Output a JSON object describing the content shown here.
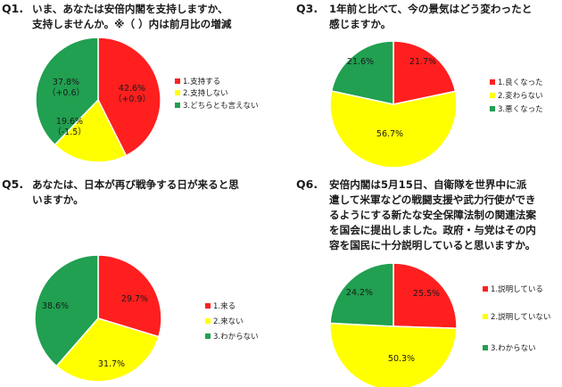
{
  "colors": {
    "red": "#ff1f1f",
    "yellow": "#ffff00",
    "green": "#20a050",
    "text": "#1a1a1a"
  },
  "questions": [
    {
      "num": "Q1.",
      "text": "いま、あなたは安倍内閣を支持しますか、\n支持しませんか。※（ ）内は前月比の増減"
    },
    {
      "num": "Q3.",
      "text": "1年前と比べて、今の景気はどう変わったと\n感じますか。"
    },
    {
      "num": "Q5.",
      "text": "あなたは、日本が再び戦争する日が来ると思\nいますか。"
    },
    {
      "num": "Q6.",
      "text": "安倍内閣は5月15日、自衛隊を世界中に派\n遣して米軍などの戦闘支援や武力行使ができ\nるようにする新たな安全保障法制の関連法案\nを国会に提出しました。政府・与党はその内\n容を国民に十分説明していると思いますか。"
    }
  ],
  "chart_data": [
    {
      "type": "pie",
      "title": "",
      "categories": [
        "1.支持する",
        "2.支持しない",
        "3.どちらとも言えない"
      ],
      "values": [
        42.6,
        19.6,
        37.8
      ],
      "labels": [
        "42.6%",
        "19.6%",
        "37.8%"
      ],
      "changes": [
        "（+0.9）",
        "（-1.5）",
        "（+0.6）"
      ]
    },
    {
      "type": "pie",
      "title": "",
      "categories": [
        "1.良くなった",
        "2.変わらない",
        "3.悪くなった"
      ],
      "values": [
        21.7,
        56.7,
        21.6
      ],
      "labels": [
        "21.7%",
        "56.7%",
        "21.6%"
      ]
    },
    {
      "type": "pie",
      "title": "",
      "categories": [
        "1.来る",
        "2.来ない",
        "3.わからない"
      ],
      "values": [
        29.7,
        31.7,
        38.6
      ],
      "labels": [
        "29.7%",
        "31.7%",
        "38.6%"
      ]
    },
    {
      "type": "pie",
      "title": "",
      "categories": [
        "1.説明している",
        "2.説明していない",
        "3.わからない"
      ],
      "values": [
        25.5,
        50.3,
        24.2
      ],
      "labels": [
        "25.5%",
        "50.3%",
        "24.2%"
      ]
    }
  ]
}
